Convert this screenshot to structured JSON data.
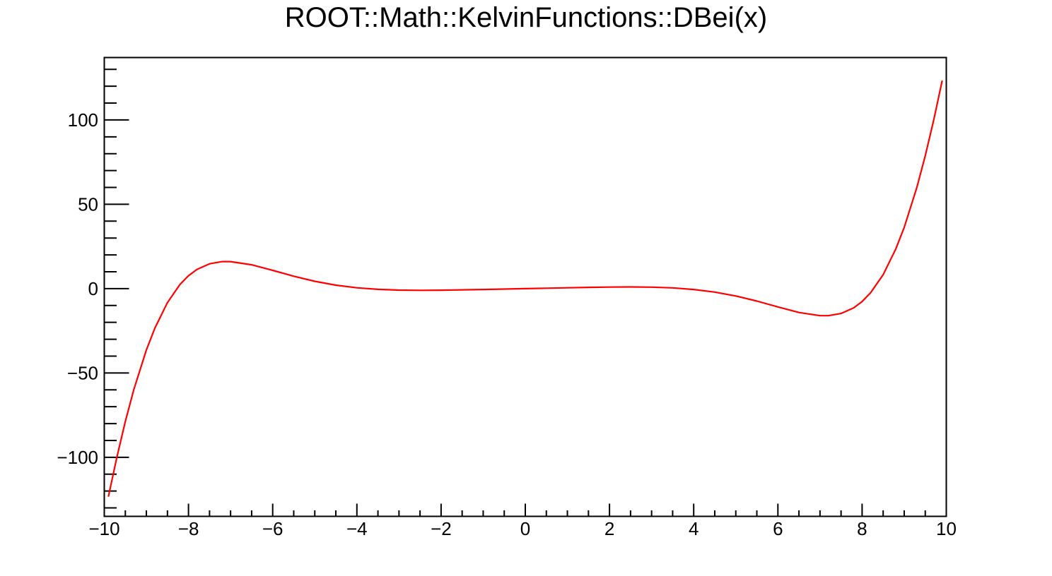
{
  "chart_data": {
    "type": "line",
    "title": "ROOT::Math::KelvinFunctions::DBei(x)",
    "xlabel": "",
    "ylabel": "",
    "xlim": [
      -10,
      10
    ],
    "ylim": [
      -135,
      137
    ],
    "grid": false,
    "legend": null,
    "background_color": "#ffffff",
    "frame_color": "#000000",
    "text_color": "#000000",
    "x_major_ticks": [
      {
        "v": -10,
        "label": "−10"
      },
      {
        "v": -8,
        "label": "−8"
      },
      {
        "v": -6,
        "label": "−6"
      },
      {
        "v": -4,
        "label": "−4"
      },
      {
        "v": -2,
        "label": "−2"
      },
      {
        "v": 0,
        "label": "0"
      },
      {
        "v": 2,
        "label": "2"
      },
      {
        "v": 4,
        "label": "4"
      },
      {
        "v": 6,
        "label": "6"
      },
      {
        "v": 8,
        "label": "8"
      },
      {
        "v": 10,
        "label": "10"
      }
    ],
    "x_minor_step": 0.5,
    "y_major_ticks": [
      {
        "v": -100,
        "label": "−100"
      },
      {
        "v": -50,
        "label": "−50"
      },
      {
        "v": 0,
        "label": "0"
      },
      {
        "v": 50,
        "label": "50"
      },
      {
        "v": 100,
        "label": "100"
      }
    ],
    "y_minor_step": 10,
    "series": [
      {
        "name": "DBei(x)",
        "color": "#ff0000",
        "points": [
          [
            -9.9,
            -122.97
          ],
          [
            -9.7,
            -99.76
          ],
          [
            -9.5,
            -78.7
          ],
          [
            -9.3,
            -59.94
          ],
          [
            -9.0,
            -36.3
          ],
          [
            -8.8,
            -23.47
          ],
          [
            -8.5,
            -8.29
          ],
          [
            -8.2,
            2.53
          ],
          [
            -8.0,
            7.66
          ],
          [
            -7.8,
            11.37
          ],
          [
            -7.5,
            14.74
          ],
          [
            -7.2,
            16.03
          ],
          [
            -7.0,
            16.04
          ],
          [
            -6.5,
            14.13
          ],
          [
            -6.0,
            10.85
          ],
          [
            -5.5,
            7.37
          ],
          [
            -5.0,
            4.35
          ],
          [
            -4.5,
            2.05
          ],
          [
            -4.0,
            0.49
          ],
          [
            -3.5,
            -0.44
          ],
          [
            -3.0,
            -0.88
          ],
          [
            -2.5,
            -1.0
          ],
          [
            -2.0,
            -0.92
          ],
          [
            -1.5,
            -0.73
          ],
          [
            -1.0,
            -0.5
          ],
          [
            -0.5,
            -0.25
          ],
          [
            0,
            0
          ],
          [
            0.5,
            0.25
          ],
          [
            1.0,
            0.5
          ],
          [
            1.5,
            0.73
          ],
          [
            2.0,
            0.92
          ],
          [
            2.5,
            1.0
          ],
          [
            3.0,
            0.88
          ],
          [
            3.5,
            0.44
          ],
          [
            4.0,
            -0.49
          ],
          [
            4.5,
            -2.05
          ],
          [
            5.0,
            -4.35
          ],
          [
            5.5,
            -7.37
          ],
          [
            6.0,
            -10.85
          ],
          [
            6.5,
            -14.13
          ],
          [
            7.0,
            -16.04
          ],
          [
            7.2,
            -16.03
          ],
          [
            7.5,
            -14.74
          ],
          [
            7.8,
            -11.37
          ],
          [
            8.0,
            -7.66
          ],
          [
            8.2,
            -2.53
          ],
          [
            8.5,
            8.29
          ],
          [
            8.8,
            23.47
          ],
          [
            9.0,
            36.3
          ],
          [
            9.3,
            59.94
          ],
          [
            9.5,
            78.7
          ],
          [
            9.7,
            99.76
          ],
          [
            9.9,
            122.97
          ]
        ]
      }
    ]
  }
}
